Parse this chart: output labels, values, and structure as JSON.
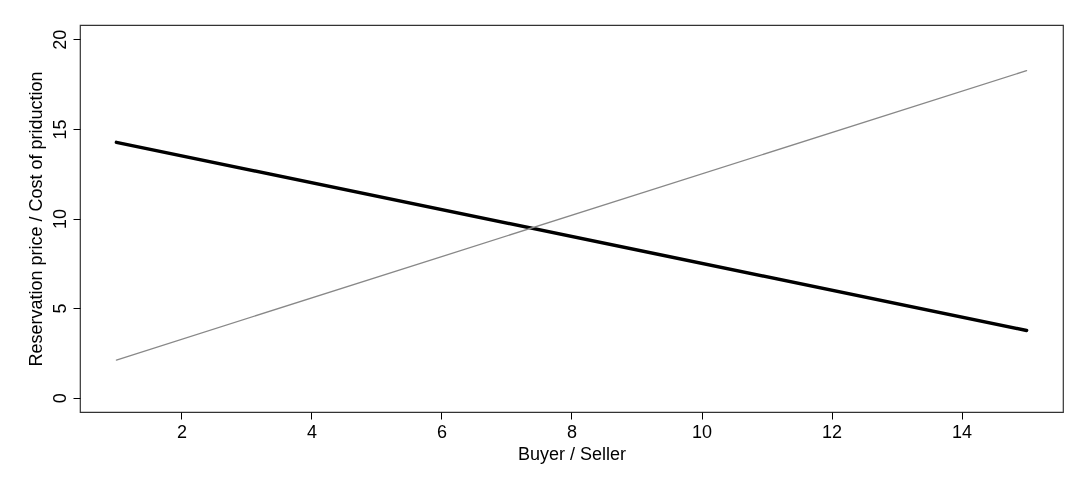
{
  "chart_data": {
    "type": "line",
    "xlabel": "Buyer / Seller",
    "ylabel": "Reservation price / Cost of priduction",
    "x": [
      1,
      15
    ],
    "series": [
      {
        "color": "#000000",
        "values": [
          14.25,
          3.75
        ]
      },
      {
        "color": "#888888",
        "values": [
          2.1,
          18.25
        ]
      }
    ],
    "xlim": [
      0.44,
      15.56
    ],
    "xticks": [
      2,
      4,
      6,
      8,
      10,
      12,
      14
    ],
    "ylim": [
      -0.8,
      20.8
    ],
    "yticks": [
      0,
      5,
      10,
      15,
      20
    ],
    "grid": false,
    "marker": "none",
    "line_style": "solid"
  }
}
